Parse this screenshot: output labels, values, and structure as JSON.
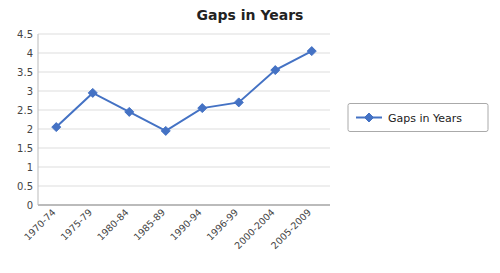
{
  "chart_data": {
    "type": "line",
    "title": "Gaps in Years",
    "categories": [
      "1970-74",
      "1975-79",
      "1980-84",
      "1985-89",
      "1990-94",
      "1996-99",
      "2000-2004",
      "2005-2009"
    ],
    "series": [
      {
        "name": "Gaps in Years",
        "color": "#4472C4",
        "marker": "diamond",
        "values": [
          2.05,
          2.95,
          2.45,
          1.95,
          2.55,
          2.7,
          3.55,
          4.05
        ]
      }
    ],
    "ylim": [
      0,
      4.5
    ],
    "yticks": [
      0,
      0.5,
      1,
      1.5,
      2,
      2.5,
      3,
      3.5,
      4,
      4.5
    ],
    "grid": true,
    "legend": "right"
  }
}
